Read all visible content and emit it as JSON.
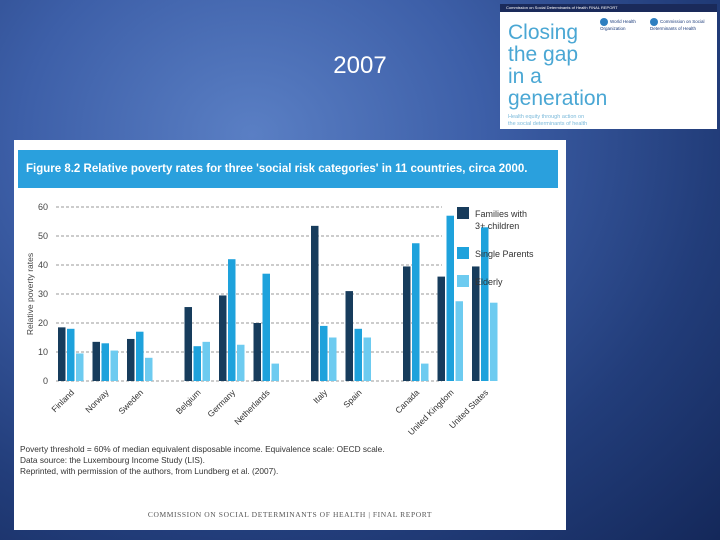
{
  "slide": {
    "title": "2007"
  },
  "cover": {
    "topbar": "Commission on Social Determinants of Health FINAL REPORT",
    "title_lines": [
      "Closing",
      "the gap",
      "in a",
      "generation"
    ],
    "subtitle_lines": [
      "Health equity through action on",
      "the social determinants of health"
    ],
    "logo_who": "World Health Organization",
    "logo_csdh": "Commission on Social Determinants of Health"
  },
  "figure": {
    "header": "Figure 8.2 Relative poverty rates for three 'social risk categories' in 11 countries, circa 2000.",
    "notes": [
      "Poverty threshold = 60% of median equivalent disposable income. Equivalence scale: OECD scale.",
      "Data source: the Luxembourg Income Study (LIS).",
      "Reprinted, with permission of the authors, from Lundberg et al. (2007)."
    ],
    "footer": "COMMISSION ON SOCIAL DETERMINANTS OF HEALTH | FINAL REPORT"
  },
  "chart_data": {
    "type": "bar",
    "ylabel": "Relative poverty rates",
    "ylim": [
      0,
      60
    ],
    "yticks": [
      0,
      10,
      20,
      30,
      40,
      50,
      60
    ],
    "grid": true,
    "legend_position": "right",
    "groups": [
      [
        "Finland",
        "Norway",
        "Sweden"
      ],
      [
        "Belgium",
        "Germany",
        "Netherlands"
      ],
      [
        "Italy",
        "Spain"
      ],
      [
        "Canada",
        "United Kingdom",
        "United States"
      ]
    ],
    "categories": [
      "Finland",
      "Norway",
      "Sweden",
      "Belgium",
      "Germany",
      "Netherlands",
      "Italy",
      "Spain",
      "Canada",
      "United Kingdom",
      "United States"
    ],
    "series": [
      {
        "name": "Families with 3+ children",
        "legend_lines": [
          "Families with",
          "3+ children"
        ],
        "color": "#173c5c",
        "values": [
          18.5,
          13.5,
          14.5,
          25.5,
          29.5,
          20,
          53.5,
          31,
          39.5,
          36,
          39.5
        ]
      },
      {
        "name": "Single Parents",
        "legend_lines": [
          "Single Parents"
        ],
        "color": "#1ea2dc",
        "values": [
          18,
          13,
          17,
          12,
          42,
          37,
          19,
          18,
          47.5,
          57,
          53
        ]
      },
      {
        "name": "Elderly",
        "legend_lines": [
          "Elderly"
        ],
        "color": "#6dcbf0",
        "values": [
          9.5,
          10.5,
          8,
          13.5,
          12.5,
          6,
          15,
          15,
          6,
          27.5,
          27
        ]
      }
    ]
  }
}
